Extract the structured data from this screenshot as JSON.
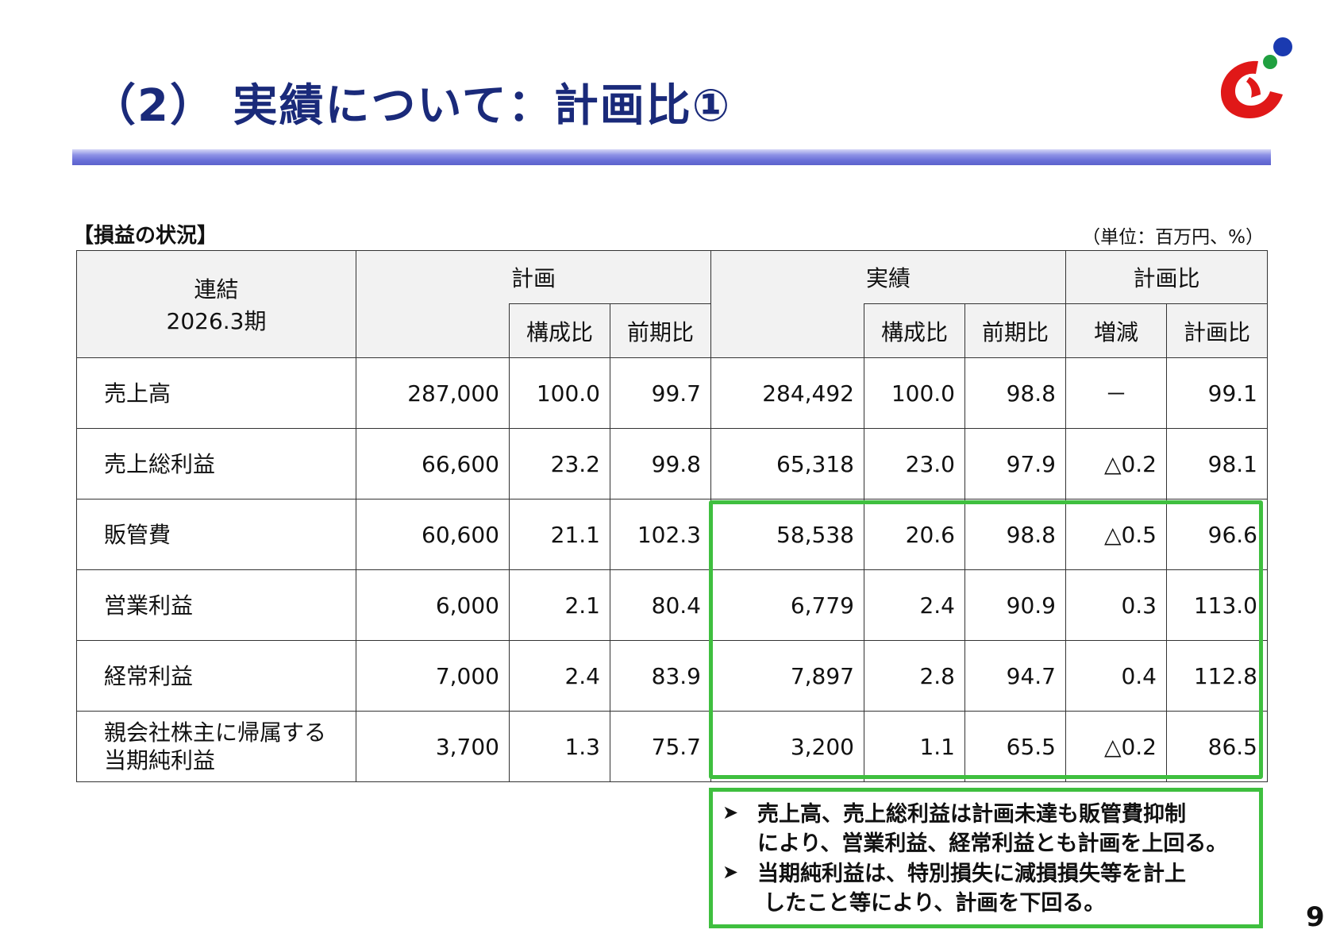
{
  "title": "（2） 実績について：計画比①",
  "section_label": "【損益の状況】",
  "unit_label": "（単位：百万円、%）",
  "table": {
    "corner": {
      "line1": "連結",
      "line2": "2026.3期"
    },
    "groups": {
      "plan": "計画",
      "actual": "実績",
      "vs_plan": "計画比"
    },
    "subheaders": {
      "plan_ratio": "構成比",
      "plan_yoy": "前期比",
      "actual_ratio": "構成比",
      "actual_yoy": "前期比",
      "change": "増減",
      "vs_plan": "計画比"
    },
    "rows": [
      {
        "label": "売上高",
        "plan": "287,000",
        "plan_ratio": "100.0",
        "plan_yoy": "99.7",
        "actual": "284,492",
        "actual_ratio": "100.0",
        "actual_yoy": "98.8",
        "change": "－",
        "vs_plan": "99.1"
      },
      {
        "label": "売上総利益",
        "plan": "66,600",
        "plan_ratio": "23.2",
        "plan_yoy": "99.8",
        "actual": "65,318",
        "actual_ratio": "23.0",
        "actual_yoy": "97.9",
        "change": "△0.2",
        "vs_plan": "98.1"
      },
      {
        "label": "販管費",
        "plan": "60,600",
        "plan_ratio": "21.1",
        "plan_yoy": "102.3",
        "actual": "58,538",
        "actual_ratio": "20.6",
        "actual_yoy": "98.8",
        "change": "△0.5",
        "vs_plan": "96.6"
      },
      {
        "label": "営業利益",
        "plan": "6,000",
        "plan_ratio": "2.1",
        "plan_yoy": "80.4",
        "actual": "6,779",
        "actual_ratio": "2.4",
        "actual_yoy": "90.9",
        "change": "0.3",
        "vs_plan": "113.0"
      },
      {
        "label": "経常利益",
        "plan": "7,000",
        "plan_ratio": "2.4",
        "plan_yoy": "83.9",
        "actual": "7,897",
        "actual_ratio": "2.8",
        "actual_yoy": "94.7",
        "change": "0.4",
        "vs_plan": "112.8"
      },
      {
        "label_line1": "親会社株主に帰属する",
        "label_line2": "当期純利益",
        "plan": "3,700",
        "plan_ratio": "1.3",
        "plan_yoy": "75.7",
        "actual": "3,200",
        "actual_ratio": "1.1",
        "actual_yoy": "65.5",
        "change": "△0.2",
        "vs_plan": "86.5"
      }
    ]
  },
  "notes": [
    {
      "line1": "売上高、売上総利益は計画未達も販管費抑制",
      "line2": "により、営業利益、経常利益とも計画を上回る。"
    },
    {
      "line1": "当期純利益は、特別損失に減損損失等を計上",
      "line2": "したこと等により、計画を下回る。"
    }
  ],
  "note_bullet": "➤",
  "page_number": "9",
  "colors": {
    "title": "#1a2a7a",
    "rule": "#6a70d8",
    "highlight": "#3fbf3f",
    "logo_red": "#e01818",
    "logo_green": "#20a040",
    "logo_blue": "#1a3ab0"
  },
  "logo_icon": "company-logo"
}
